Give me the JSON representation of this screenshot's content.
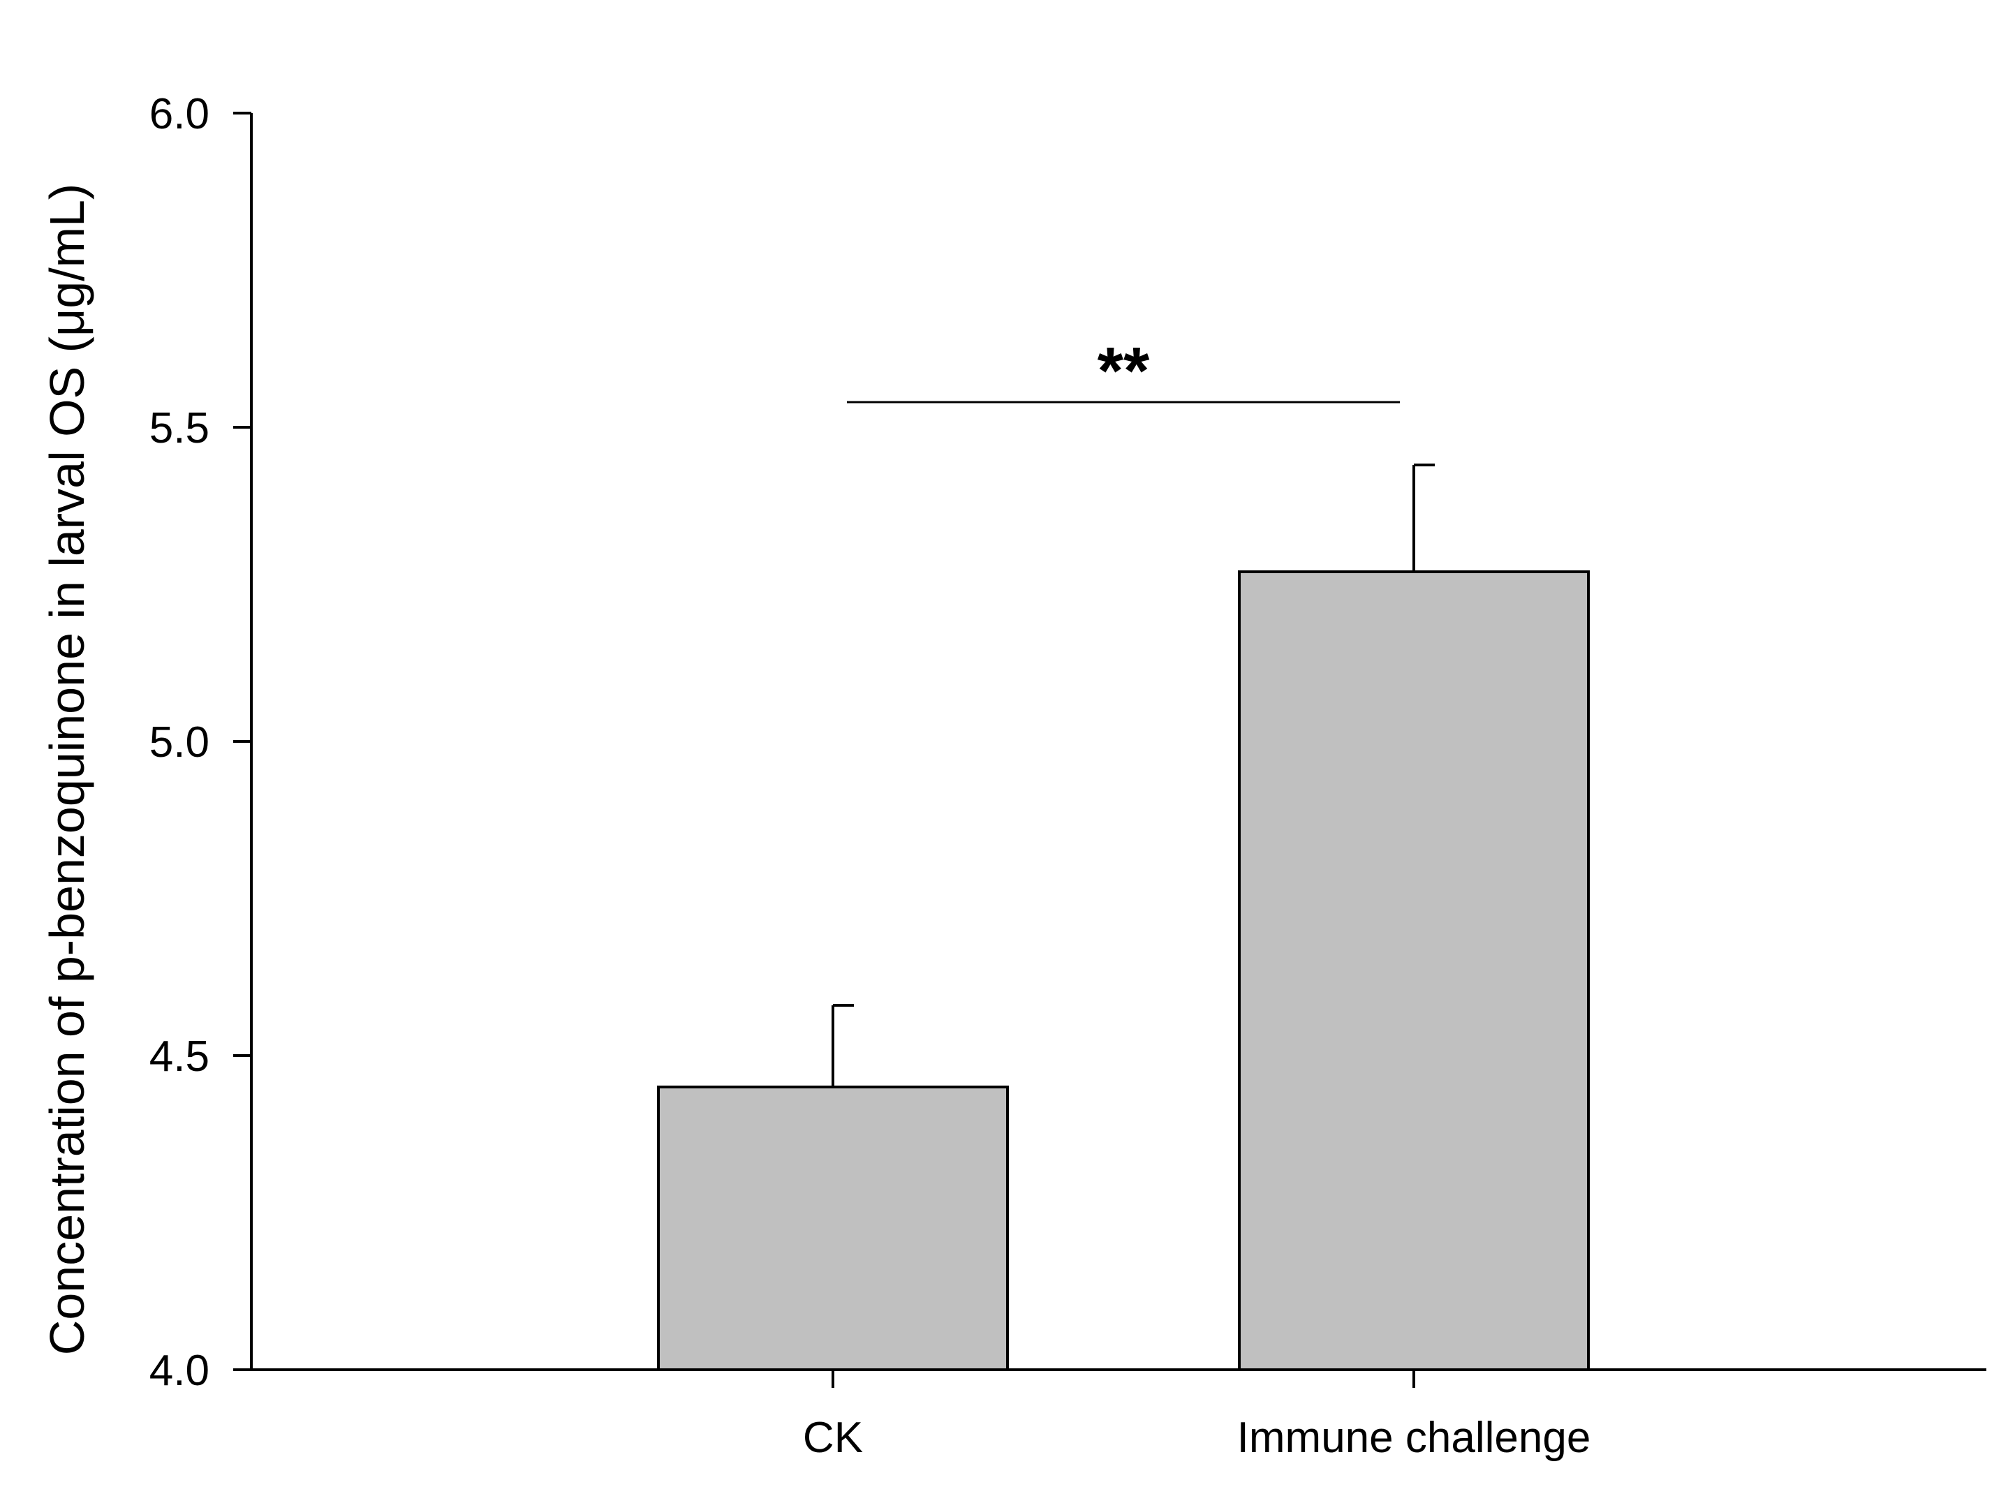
{
  "chart_data": {
    "type": "bar",
    "title": "",
    "xlabel": "",
    "ylabel": "Concentration of p-benzoquinone in larval OS (μg/mL)",
    "categories": [
      "CK",
      "Immune challenge"
    ],
    "values": [
      4.45,
      5.27
    ],
    "error_upper": [
      0.13,
      0.17
    ],
    "ylim": [
      4.0,
      6.0
    ],
    "yticks": [
      "4.0",
      "4.5",
      "5.0",
      "5.5",
      "6.0"
    ],
    "grid": false,
    "legend": "none",
    "bar_color": "#c0c0c0",
    "bar_edge_color": "#000000",
    "significance": {
      "label": "**",
      "between": [
        "CK",
        "Immune challenge"
      ],
      "y": 5.54
    }
  }
}
